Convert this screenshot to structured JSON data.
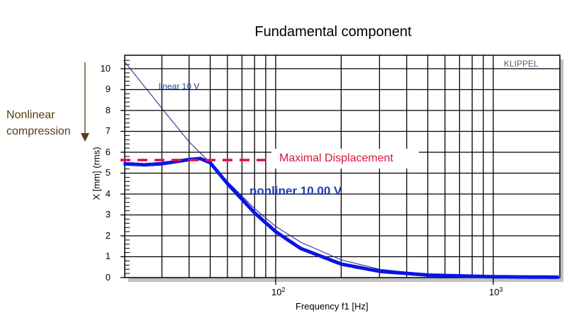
{
  "chart_data": {
    "type": "line",
    "title": "Fundamental component",
    "xlabel": "Frequency f1  [Hz]",
    "ylabel": "X [mm]  (rms)",
    "xscale": "log",
    "xlim": [
      20,
      2000
    ],
    "ylim": [
      0,
      10.5
    ],
    "x_tick_labels": [
      "10^2",
      "10^3"
    ],
    "y_ticks": [
      0,
      1,
      2,
      3,
      4,
      5,
      6,
      7,
      8,
      9,
      10
    ],
    "grid": true,
    "watermark": "KLIPPEL",
    "series": [
      {
        "name": "linear 10 V",
        "style": "thin line",
        "color": "#1a1a8c",
        "x": [
          20,
          30,
          40,
          50,
          60,
          80,
          100,
          130,
          200,
          300,
          500,
          1000,
          2000
        ],
        "y": [
          10.4,
          8.1,
          6.5,
          5.5,
          4.6,
          3.3,
          2.45,
          1.7,
          0.85,
          0.4,
          0.15,
          0.04,
          0.01
        ]
      },
      {
        "name": "nonliner 10.00 V",
        "style": "thick line",
        "color": "#0a14e6",
        "x": [
          20,
          25,
          30,
          40,
          45,
          50,
          60,
          80,
          100,
          130,
          200,
          300,
          500,
          1000,
          2000
        ],
        "y": [
          5.45,
          5.4,
          5.45,
          5.65,
          5.7,
          5.5,
          4.5,
          3.1,
          2.2,
          1.4,
          0.65,
          0.3,
          0.12,
          0.04,
          0.02
        ]
      },
      {
        "name": "Maximal Displacement",
        "style": "dashed",
        "color": "#dc143c",
        "x": [
          20,
          60
        ],
        "y": [
          5.6,
          5.6
        ]
      }
    ],
    "annotations": [
      "Nonlinear compression",
      "Maximal Displacement",
      "nonliner 10.00 V",
      "linear 10 V"
    ]
  },
  "title": "Fundamental component",
  "annotation_left": {
    "line1": "Nonlinear",
    "line2": "compression"
  },
  "labels": {
    "linear": "linear 10 V",
    "nonlinear": "nonliner 10.00 V",
    "maxdisp": "Maximal Displacement",
    "brand": "KLIPPEL"
  },
  "axes": {
    "xlabel": "Frequency f1  [Hz]",
    "ylabel": "X [mm]  (rms)",
    "yticks": [
      "0",
      "1",
      "2",
      "3",
      "4",
      "5",
      "6",
      "7",
      "8",
      "9",
      "10"
    ],
    "xticks": [
      {
        "base": "10",
        "exp": "2"
      },
      {
        "base": "10",
        "exp": "3"
      }
    ]
  }
}
